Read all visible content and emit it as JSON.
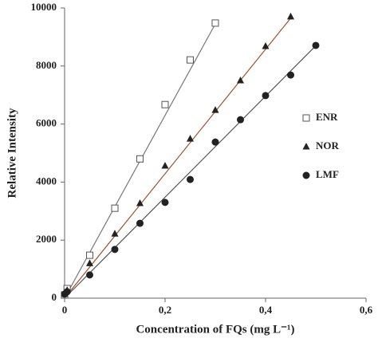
{
  "chart_data": {
    "type": "scatter",
    "xlabel": "Concentration of FQs (mg L⁻¹)",
    "ylabel": "Relative Intensity",
    "xlim": [
      0,
      0.6
    ],
    "ylim": [
      0,
      10000
    ],
    "xticks": [
      0,
      {
        "value": 0.2,
        "label": "0,2"
      },
      {
        "value": 0.4,
        "label": "0,4"
      },
      {
        "value": 0.6,
        "label": "0,6"
      }
    ],
    "yticks": [
      0,
      2000,
      4000,
      6000,
      8000,
      10000
    ],
    "grid": false,
    "legend": "right",
    "series": [
      {
        "name": "ENR",
        "color": "#555555",
        "line_color": "#777777",
        "marker": "square-open",
        "x": [
          0,
          0.005,
          0.05,
          0.1,
          0.15,
          0.2,
          0.25,
          0.3
        ],
        "values": [
          110,
          330,
          1480,
          3100,
          4800,
          6670,
          8210,
          9480
        ],
        "trend_line": {
          "x": [
            0,
            0.3
          ],
          "values": [
            0,
            9450
          ]
        }
      },
      {
        "name": "NOR",
        "color": "#222222",
        "line_color": "#a0522d",
        "marker": "triangle",
        "x": [
          0,
          0.005,
          0.05,
          0.1,
          0.15,
          0.2,
          0.25,
          0.3,
          0.35,
          0.4,
          0.45
        ],
        "values": [
          150,
          270,
          1200,
          2220,
          3270,
          4560,
          5490,
          6480,
          7500,
          8680,
          9700
        ],
        "trend_line": {
          "x": [
            0,
            0.45
          ],
          "values": [
            0,
            9650
          ]
        }
      },
      {
        "name": "LMF",
        "color": "#222222",
        "line_color": "#555555",
        "marker": "circle",
        "x": [
          0,
          0.005,
          0.05,
          0.1,
          0.15,
          0.2,
          0.25,
          0.3,
          0.35,
          0.4,
          0.45,
          0.5
        ],
        "values": [
          140,
          220,
          800,
          1680,
          2580,
          3300,
          4090,
          5380,
          6150,
          6980,
          7690,
          8710
        ],
        "trend_line": {
          "x": [
            0,
            0.5
          ],
          "values": [
            0,
            8700
          ]
        }
      }
    ]
  }
}
